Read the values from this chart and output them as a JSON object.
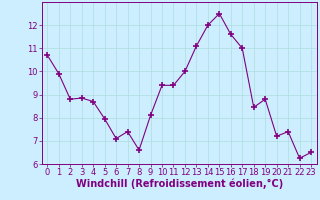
{
  "x": [
    0,
    1,
    2,
    3,
    4,
    5,
    6,
    7,
    8,
    9,
    10,
    11,
    12,
    13,
    14,
    15,
    16,
    17,
    18,
    19,
    20,
    21,
    22,
    23
  ],
  "y": [
    10.7,
    9.9,
    8.8,
    8.85,
    8.7,
    7.95,
    7.1,
    7.4,
    6.6,
    8.1,
    9.4,
    9.4,
    10.0,
    11.1,
    12.0,
    12.5,
    11.6,
    11.0,
    8.45,
    8.8,
    7.2,
    7.4,
    6.25,
    6.5
  ],
  "line_color": "#800080",
  "marker": "+",
  "marker_size": 4,
  "marker_linewidth": 1.2,
  "bg_color": "#cceeff",
  "grid_color": "#aadddd",
  "xlabel": "Windchill (Refroidissement éolien,°C)",
  "ylim": [
    6,
    13
  ],
  "xlim": [
    -0.5,
    23.5
  ],
  "yticks": [
    6,
    7,
    8,
    9,
    10,
    11,
    12
  ],
  "xticks": [
    0,
    1,
    2,
    3,
    4,
    5,
    6,
    7,
    8,
    9,
    10,
    11,
    12,
    13,
    14,
    15,
    16,
    17,
    18,
    19,
    20,
    21,
    22,
    23
  ],
  "tick_label_fontsize": 6,
  "xlabel_fontsize": 7,
  "label_color": "#800080"
}
